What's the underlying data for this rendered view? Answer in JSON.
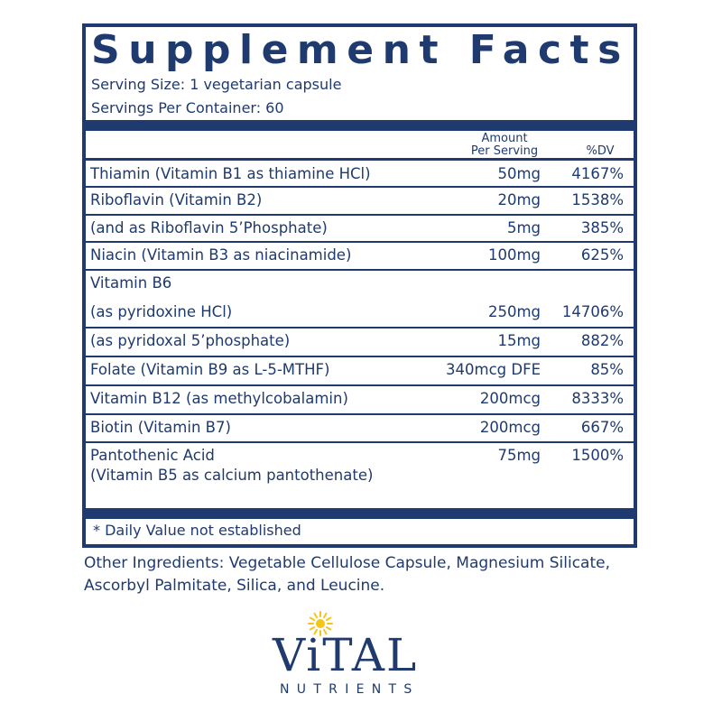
{
  "panel": {
    "title": "Supplement Facts",
    "serving_size": "Serving Size: 1 vegetarian capsule",
    "servings_per_container": "Servings Per Container: 60",
    "header_amount_line1": "Amount",
    "header_amount_line2": "Per Serving",
    "header_dv": "%DV",
    "rows": [
      {
        "name": "Thiamin (Vitamin B1 as thiamine HCl)",
        "amount": "50mg",
        "dv": "4167%"
      },
      {
        "name": "Riboflavin (Vitamin B2)",
        "amount": "20mg",
        "dv": "1538%"
      },
      {
        "name": " (and as Riboflavin 5’Phosphate)",
        "amount": "5mg",
        "dv": "385%"
      },
      {
        "name": "Niacin (Vitamin B3 as niacinamide)",
        "amount": "100mg",
        "dv": "625%"
      },
      {
        "name": "Vitamin B6",
        "amount": "",
        "dv": ""
      },
      {
        "name": " (as pyridoxine HCl)",
        "amount": "250mg",
        "dv": "14706%"
      },
      {
        "name": " (as pyridoxal 5’phosphate)",
        "amount": "15mg",
        "dv": "882%"
      },
      {
        "name": "Folate (Vitamin B9 as L-5-MTHF)",
        "amount": "340mcg DFE",
        "dv": "85%"
      },
      {
        "name": "Vitamin B12 (as methylcobalamin)",
        "amount": "200mcg",
        "dv": "8333%"
      },
      {
        "name": "Biotin (Vitamin B7)",
        "amount": "200mcg",
        "dv": "667%"
      },
      {
        "name": "Pantothenic Acid",
        "name_line2": "(Vitamin B5 as calcium pantothenate)",
        "amount": "75mg",
        "dv": "1500%"
      }
    ],
    "footnote": "* Daily Value not established"
  },
  "other_ingredients": "Other Ingredients: Vegetable Cellulose Capsule, Magnesium Silicate, Ascorbyl Palmitate, Silica, and Leucine.",
  "logo": {
    "word": "ViTAL",
    "sub": "NUTRIENTS",
    "primary_color": "#1f3a6e",
    "sun_color": "#f5c518"
  }
}
